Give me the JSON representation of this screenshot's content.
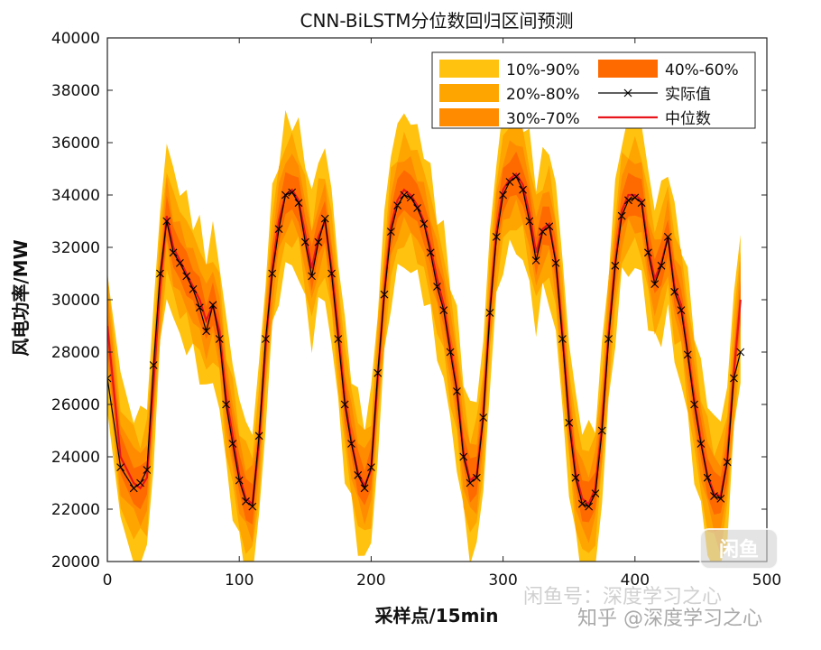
{
  "chart_data": {
    "type": "line",
    "title": "CNN-BiLSTM分位数回归区间预测",
    "xlabel": "采样点/15min",
    "ylabel": "风电功率/MW",
    "xlim": [
      0,
      500
    ],
    "ylim": [
      20000,
      40000
    ],
    "xticks": [
      0,
      100,
      200,
      300,
      400,
      500
    ],
    "yticks": [
      20000,
      22000,
      24000,
      26000,
      28000,
      30000,
      32000,
      34000,
      36000,
      38000,
      40000
    ],
    "grid": false,
    "legend_position": "top-right",
    "legend": [
      {
        "label": "10%-90%",
        "kind": "band",
        "color": "#FFC20E"
      },
      {
        "label": "20%-80%",
        "kind": "band",
        "color": "#FFA500"
      },
      {
        "label": "30%-70%",
        "kind": "band",
        "color": "#FF8C00"
      },
      {
        "label": "40%-60%",
        "kind": "band",
        "color": "#FF6A00"
      },
      {
        "label": "实际值",
        "kind": "line-marker",
        "color": "#000000"
      },
      {
        "label": "中位数",
        "kind": "line",
        "color": "#E8161C"
      }
    ],
    "x": [
      0,
      10,
      20,
      25,
      30,
      35,
      40,
      45,
      50,
      55,
      60,
      65,
      70,
      75,
      80,
      85,
      90,
      95,
      100,
      105,
      110,
      115,
      120,
      125,
      130,
      135,
      140,
      145,
      150,
      155,
      160,
      165,
      170,
      175,
      180,
      185,
      190,
      195,
      200,
      205,
      210,
      215,
      220,
      225,
      230,
      235,
      240,
      245,
      250,
      255,
      260,
      265,
      270,
      275,
      280,
      285,
      290,
      295,
      300,
      305,
      310,
      315,
      320,
      325,
      330,
      335,
      340,
      345,
      350,
      355,
      360,
      365,
      370,
      375,
      380,
      385,
      390,
      395,
      400,
      405,
      410,
      415,
      420,
      425,
      430,
      435,
      440,
      445,
      450,
      455,
      460,
      465,
      470,
      475,
      480
    ],
    "series": [
      {
        "name": "实际值",
        "values": [
          27000,
          23600,
          22800,
          23000,
          23500,
          27500,
          31000,
          33000,
          31800,
          31400,
          30900,
          30400,
          29700,
          28800,
          29800,
          28500,
          26000,
          24500,
          23100,
          22300,
          22100,
          24800,
          28500,
          31000,
          32700,
          34000,
          34100,
          33700,
          32200,
          30900,
          32200,
          33100,
          31000,
          28500,
          26000,
          24500,
          23300,
          22800,
          23600,
          27200,
          30200,
          32600,
          33600,
          34000,
          33900,
          33500,
          32900,
          31800,
          30500,
          29600,
          28000,
          26500,
          24000,
          23000,
          23200,
          25500,
          29500,
          32400,
          34000,
          34500,
          34700,
          34200,
          33000,
          31500,
          32600,
          32800,
          31400,
          28500,
          25300,
          23200,
          22200,
          22100,
          22600,
          25000,
          28500,
          31300,
          33200,
          33800,
          33900,
          33700,
          31800,
          30600,
          31300,
          32400,
          30300,
          29600,
          27900,
          26000,
          24500,
          23200,
          22500,
          22400,
          23800,
          27000,
          28000
        ],
        "color": "#000000"
      },
      {
        "name": "中位数",
        "values": [
          29000,
          24000,
          23000,
          22800,
          23200,
          26800,
          30500,
          33200,
          32000,
          31500,
          31000,
          30500,
          30000,
          29200,
          29800,
          28800,
          26300,
          24800,
          23300,
          22400,
          22200,
          24500,
          28200,
          31200,
          33000,
          34000,
          34200,
          33800,
          32500,
          31200,
          32400,
          33000,
          31200,
          28800,
          26200,
          24600,
          23400,
          22900,
          23500,
          27000,
          30300,
          32800,
          33800,
          34200,
          34000,
          33600,
          33000,
          32000,
          30800,
          29800,
          28200,
          26600,
          24200,
          23100,
          23300,
          25600,
          29600,
          32600,
          34200,
          34600,
          34800,
          34400,
          33300,
          31800,
          32700,
          32900,
          31500,
          28700,
          25600,
          23400,
          22400,
          22200,
          22800,
          25200,
          28700,
          31400,
          33400,
          34000,
          34000,
          33800,
          32000,
          30800,
          31400,
          32400,
          30500,
          29800,
          28000,
          26200,
          24600,
          23300,
          22600,
          22500,
          23900,
          27200,
          30000
        ],
        "color": "#E8161C"
      }
    ]
  },
  "watermarks": [
    "闲鱼号：深度学习之心",
    "知乎 @深度学习之心",
    "闲鱼"
  ]
}
